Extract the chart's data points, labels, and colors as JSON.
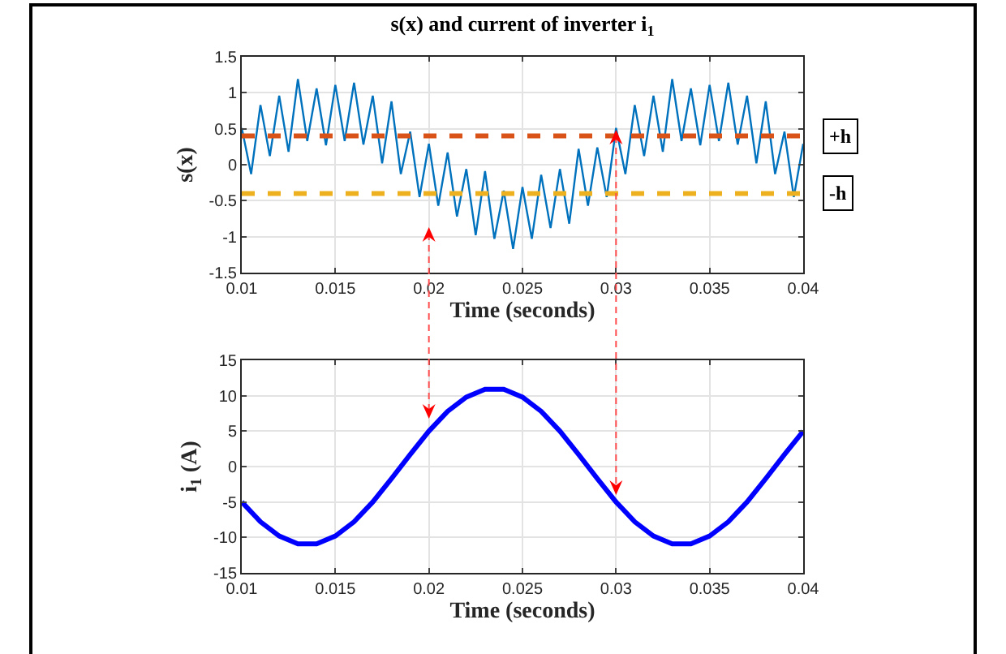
{
  "chart_data": [
    {
      "type": "line",
      "title": "s(x) and current of inverter i$_{1}$",
      "xlabel": "Time (seconds)",
      "ylabel": "s(x)",
      "x": [
        0.01,
        0.0105,
        0.011,
        0.0115,
        0.012,
        0.0125,
        0.013,
        0.0135,
        0.014,
        0.0145,
        0.015,
        0.0155,
        0.016,
        0.0165,
        0.017,
        0.0175,
        0.018,
        0.0185,
        0.019,
        0.0195,
        0.02,
        0.0205,
        0.021,
        0.0215,
        0.022,
        0.0225,
        0.023,
        0.0235,
        0.024,
        0.0245,
        0.025,
        0.0255,
        0.026,
        0.0265,
        0.027,
        0.0275,
        0.028,
        0.0285,
        0.029,
        0.0295,
        0.03,
        0.0305,
        0.031,
        0.0315,
        0.032,
        0.0325,
        0.033,
        0.0335,
        0.034,
        0.0345,
        0.035,
        0.0355,
        0.036,
        0.0365,
        0.037,
        0.0375,
        0.038,
        0.0385,
        0.039,
        0.0395,
        0.04
      ],
      "series": [
        {
          "color": "#0072bd",
          "values": [
            0.51,
            -0.13,
            0.83,
            0.12,
            0.96,
            0.18,
            1.19,
            0.33,
            1.06,
            0.27,
            1.11,
            0.33,
            1.14,
            0.28,
            0.96,
            0.02,
            0.88,
            -0.13,
            0.46,
            -0.45,
            0.29,
            -0.57,
            0.17,
            -0.72,
            -0.06,
            -0.98,
            -0.09,
            -1.03,
            -0.36,
            -1.17,
            -0.31,
            -1.03,
            -0.14,
            -0.88,
            -0.06,
            -0.82,
            0.22,
            -0.57,
            0.24,
            -0.45,
            0.51,
            -0.13,
            0.83,
            0.12,
            0.96,
            0.18,
            1.19,
            0.33,
            1.06,
            0.27,
            1.11,
            0.33,
            1.14,
            0.28,
            0.96,
            0.02,
            0.88,
            -0.13,
            0.46,
            -0.45,
            0.29
          ]
        }
      ],
      "ref_lines": [
        {
          "axis": "y",
          "value": 0.4,
          "label": "+h",
          "color": "#d95319",
          "line_style": "dashed"
        },
        {
          "axis": "y",
          "value": -0.4,
          "label": "-h",
          "color": "#edb120",
          "line_style": "dashed"
        }
      ],
      "xlim": [
        0.01,
        0.04
      ],
      "xticks": [
        0.01,
        0.015,
        0.02,
        0.025,
        0.03,
        0.035,
        0.04
      ],
      "ylim": [
        -1.5,
        1.5
      ],
      "yticks": [
        -1.5,
        -1,
        -0.5,
        0,
        0.5,
        1,
        1.5
      ],
      "grid": true,
      "marker": "none",
      "line_style": "solid"
    },
    {
      "type": "line",
      "xlabel": "Time (seconds)",
      "ylabel": "i$_{1}$ (A)",
      "x": [
        0.01,
        0.011,
        0.012,
        0.013,
        0.014,
        0.015,
        0.016,
        0.017,
        0.018,
        0.019,
        0.02,
        0.021,
        0.022,
        0.023,
        0.024,
        0.025,
        0.026,
        0.027,
        0.028,
        0.029,
        0.03,
        0.031,
        0.032,
        0.033,
        0.034,
        0.035,
        0.036,
        0.037,
        0.038,
        0.039,
        0.04
      ],
      "series": [
        {
          "color": "#0000ff",
          "values": [
            -5.0,
            -7.8,
            -9.8,
            -10.9,
            -10.9,
            -9.8,
            -7.8,
            -5.0,
            -1.7,
            1.7,
            5.0,
            7.8,
            9.8,
            10.9,
            10.9,
            9.8,
            7.8,
            5.0,
            1.7,
            -1.7,
            -5.0,
            -7.8,
            -9.8,
            -10.9,
            -10.9,
            -9.8,
            -7.8,
            -5.0,
            -1.7,
            1.7,
            5.0
          ]
        }
      ],
      "xlim": [
        0.01,
        0.04
      ],
      "xticks": [
        0.01,
        0.015,
        0.02,
        0.025,
        0.03,
        0.035,
        0.04
      ],
      "ylim": [
        -15,
        15
      ],
      "yticks": [
        -15,
        -10,
        -5,
        0,
        5,
        10,
        15
      ],
      "grid": true,
      "marker": "none",
      "line_style": "solid"
    }
  ]
}
